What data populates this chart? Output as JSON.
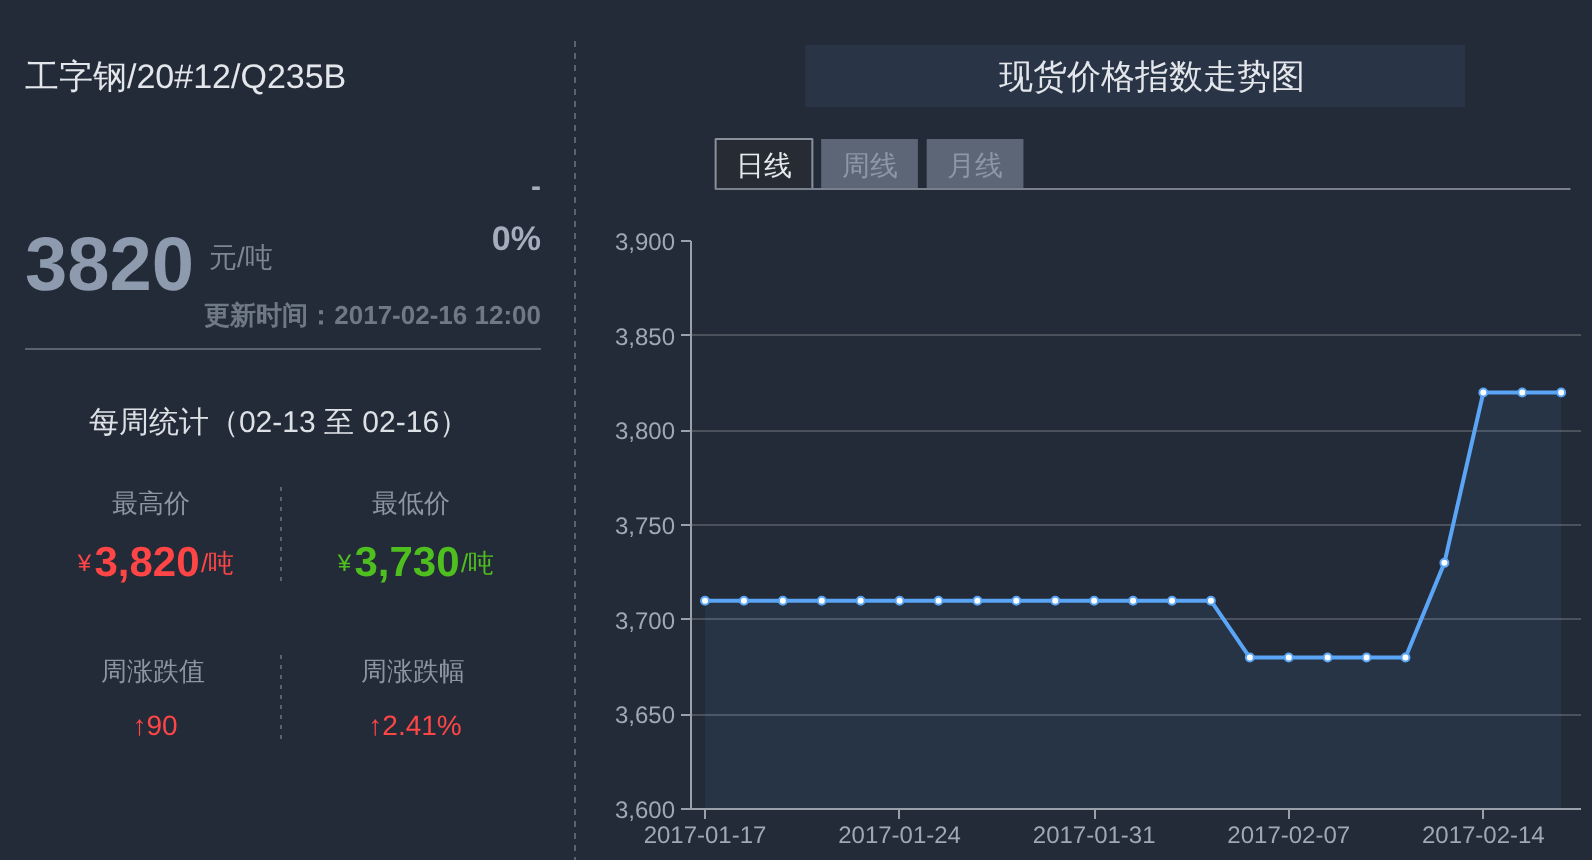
{
  "chart_data": [
    {
      "type": "other",
      "title": "工字钢/20#12/Q235B",
      "annotations": [
        "3820",
        "元/吨",
        "-",
        "0%",
        "更新时间：2017-02-16 12:00",
        "每周统计（02-13 至 02-16）",
        "最高价",
        "¥",
        "3,820",
        "/吨",
        "最低价",
        "¥",
        "3,730",
        "/吨",
        "周涨跌值",
        "↑90",
        "周涨跌幅",
        "↑2.41%"
      ]
    },
    {
      "type": "area",
      "title": "现货价格指数走势图",
      "annotations": [
        "日线",
        "周线",
        "月线"
      ],
      "categories": [
        "2017-01-17",
        null,
        null,
        null,
        null,
        "2017-01-24",
        null,
        null,
        null,
        null,
        "2017-01-31",
        null,
        null,
        null,
        null,
        "2017-02-07",
        null,
        null,
        null,
        null,
        "2017-02-14",
        null,
        null
      ],
      "values": [
        3710,
        3710,
        3710,
        3710,
        3710,
        3710,
        3710,
        3710,
        3710,
        3710,
        3710,
        3710,
        3710,
        3710,
        3680,
        3680,
        3680,
        3680,
        3680,
        3730,
        3820,
        3820,
        3820
      ],
      "color": "#5aa5f5",
      "ylim": [
        3600,
        3900
      ],
      "yticks": [
        {
          "value": 3600,
          "label": "3,600"
        },
        {
          "value": 3650,
          "label": "3,650"
        },
        {
          "value": 3700,
          "label": "3,700"
        },
        {
          "value": 3750,
          "label": "3,750"
        },
        {
          "value": 3800,
          "label": "3,800"
        },
        {
          "value": 3850,
          "label": "3,850"
        },
        {
          "value": 3900,
          "label": "3,900"
        }
      ],
      "grid": "y",
      "marker": "circle"
    }
  ]
}
